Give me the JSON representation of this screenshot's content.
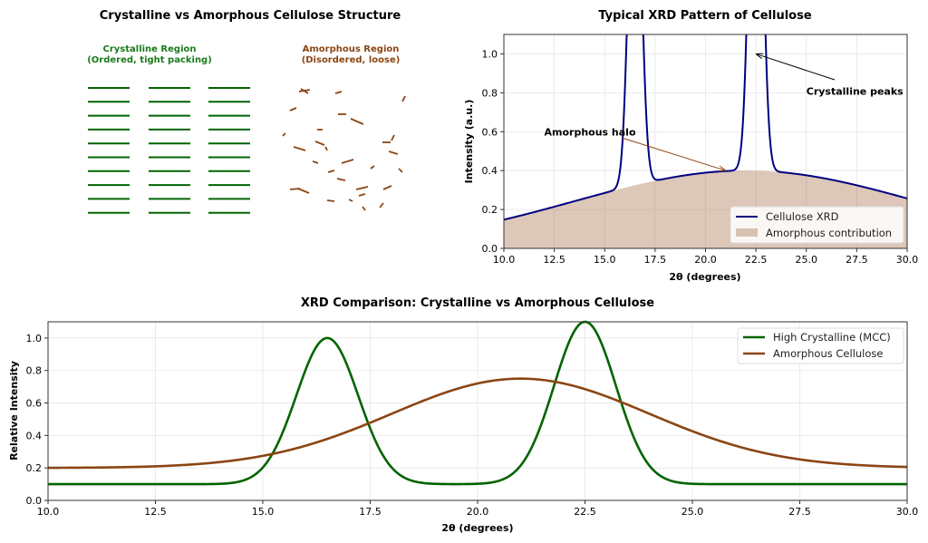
{
  "chart_data": [
    {
      "type": "diagram",
      "title": "Crystalline vs Amorphous Cellulose Structure",
      "crystalline_label": [
        "Crystalline Region",
        "(Ordered, tight packing)"
      ],
      "amorphous_label": [
        "Amorphous Region",
        "(Disordered, loose)"
      ],
      "crystalline_grid": {
        "columns": 3,
        "rows": 10
      },
      "amorphous_segments": 30,
      "colors": {
        "crystalline": "#006400",
        "amorphous": "#8B4513"
      }
    },
    {
      "type": "line",
      "title": "Typical XRD Pattern of Cellulose",
      "xlabel": "2θ (degrees)",
      "ylabel": "Intensity (a.u.)",
      "xlim": [
        10,
        30
      ],
      "ylim": [
        0,
        1.1
      ],
      "xticks": [
        "10.0",
        "12.5",
        "15.0",
        "17.5",
        "20.0",
        "22.5",
        "25.0",
        "27.5",
        "30.0"
      ],
      "yticks": [
        "0.0",
        "0.2",
        "0.4",
        "0.6",
        "0.8",
        "1.0"
      ],
      "grid": true,
      "legend_position": "lower-right",
      "series": [
        {
          "name": "Cellulose XRD",
          "kind": "line",
          "color": "#000080",
          "background": {
            "center": 22,
            "height": 0.4,
            "sigma": 8.5
          },
          "peaks": [
            {
              "center": 16.5,
              "height": 2.0,
              "sigma": 0.3
            },
            {
              "center": 22.5,
              "height": 2.5,
              "sigma": 0.3
            }
          ]
        },
        {
          "name": "Amorphous contribution",
          "kind": "area",
          "color": "#8B4513",
          "alpha": 0.3,
          "background": {
            "center": 22,
            "height": 0.4,
            "sigma": 8.5
          }
        }
      ],
      "annotations": [
        {
          "text": "Crystalline peaks",
          "xy": [
            22.5,
            1.0
          ],
          "xytext": [
            25,
            0.8
          ],
          "color": "#000000"
        },
        {
          "text": "Amorphous halo",
          "xy": [
            21,
            0.4
          ],
          "xytext": [
            12,
            0.6
          ],
          "color": "#8B4513"
        }
      ]
    },
    {
      "type": "line",
      "title": "XRD Comparison: Crystalline vs Amorphous Cellulose",
      "xlabel": "2θ (degrees)",
      "ylabel": "Relative Intensity",
      "xlim": [
        10,
        30
      ],
      "ylim": [
        0,
        1.1
      ],
      "xticks": [
        "10.0",
        "12.5",
        "15.0",
        "17.5",
        "20.0",
        "22.5",
        "25.0",
        "27.5",
        "30.0"
      ],
      "yticks": [
        "0.0",
        "0.2",
        "0.4",
        "0.6",
        "0.8",
        "1.0"
      ],
      "grid": true,
      "legend_position": "upper-right",
      "series": [
        {
          "name": "High Crystalline (MCC)",
          "color": "#006400",
          "baseline": 0.1,
          "peaks": [
            {
              "center": 16.5,
              "height": 0.9,
              "sigma": 0.72
            },
            {
              "center": 22.5,
              "height": 1.0,
              "sigma": 0.72
            }
          ]
        },
        {
          "name": "Amorphous Cellulose",
          "color": "#8B4513",
          "baseline": 0.2,
          "peaks": [
            {
              "center": 21,
              "height": 0.55,
              "sigma": 3.0
            }
          ]
        }
      ]
    }
  ]
}
